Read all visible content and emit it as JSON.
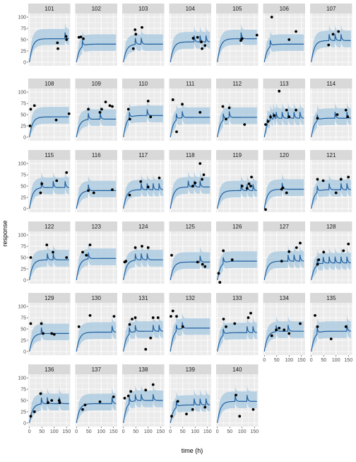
{
  "chart_data": {
    "type": "line",
    "subtype": "faceted pharmacokinetic fit: median line + shaded prediction band + observed points",
    "xlabel": "time (h)",
    "ylabel": "response",
    "xlim": [
      -5,
      165
    ],
    "ylim": [
      -8,
      108
    ],
    "x_ticks": [
      0,
      50,
      100,
      150
    ],
    "y_ticks": [
      0,
      25,
      50,
      75,
      100
    ],
    "x_tick_labels": [
      "0",
      "50",
      "100",
      "150"
    ],
    "y_tick_labels": [
      "0",
      "25",
      "50",
      "75",
      "100"
    ],
    "grid": true,
    "colors": {
      "panel_bg": "#ebebeb",
      "strip_bg": "#d9d9d9",
      "grid": "#ffffff",
      "band": "#a6c8e0",
      "line": "#1f5f9f",
      "points": "#000000"
    },
    "layout": {
      "columns": 7,
      "rows": 6
    },
    "panels": [
      {
        "id": "101",
        "dose_times": [
          0,
          144
        ],
        "pred_base": 52,
        "band_lo": 14,
        "band_hi": 22,
        "points": [
          [
            113,
            43
          ],
          [
            115,
            30
          ],
          [
            148,
            57
          ],
          [
            150,
            50
          ]
        ]
      },
      {
        "id": "102",
        "dose_times": [
          0,
          24
        ],
        "pred_base": 40,
        "band_lo": 15,
        "band_hi": 22,
        "points": [
          [
            10,
            55
          ],
          [
            18,
            56
          ],
          [
            28,
            52
          ]
        ]
      },
      {
        "id": "103",
        "dose_times": [
          0,
          48,
          72
        ],
        "pred_base": 40,
        "band_lo": 15,
        "band_hi": 22,
        "points": [
          [
            40,
            30
          ],
          [
            47,
            72
          ],
          [
            50,
            62
          ],
          [
            75,
            77
          ]
        ]
      },
      {
        "id": "104",
        "dose_times": [
          0,
          96,
          120,
          144
        ],
        "pred_base": 45,
        "band_lo": 15,
        "band_hi": 22,
        "points": [
          [
            92,
            53
          ],
          [
            110,
            55
          ],
          [
            125,
            45
          ],
          [
            128,
            30
          ],
          [
            140,
            37
          ]
        ]
      },
      {
        "id": "105",
        "dose_times": [
          0,
          96
        ],
        "pred_base": 52,
        "band_lo": 14,
        "band_hi": 20,
        "points": [
          [
            95,
            48
          ],
          [
            100,
            52
          ],
          [
            160,
            60
          ]
        ]
      },
      {
        "id": "106",
        "dose_times": [
          0,
          24
        ],
        "pred_base": 40,
        "band_lo": 15,
        "band_hi": 22,
        "points": [
          [
            30,
            100
          ],
          [
            100,
            50
          ],
          [
            128,
            68
          ]
        ]
      },
      {
        "id": "107",
        "dose_times": [
          0,
          72,
          96,
          120
        ],
        "pred_base": 48,
        "band_lo": 15,
        "band_hi": 22,
        "points": [
          [
            70,
            38
          ],
          [
            88,
            62
          ],
          [
            110,
            68
          ]
        ]
      },
      {
        "id": "108",
        "dose_times": [
          0
        ],
        "pred_base": 45,
        "band_lo": 15,
        "band_hi": 22,
        "points": [
          [
            2,
            25
          ],
          [
            5,
            62
          ],
          [
            20,
            70
          ],
          [
            108,
            38
          ],
          [
            160,
            52
          ]
        ]
      },
      {
        "id": "109",
        "dose_times": [
          0,
          48,
          96
        ],
        "pred_base": 40,
        "band_lo": 15,
        "band_hi": 22,
        "points": [
          [
            48,
            62
          ],
          [
            95,
            55
          ],
          [
            102,
            62
          ],
          [
            118,
            78
          ],
          [
            135,
            70
          ],
          [
            145,
            68
          ]
        ]
      },
      {
        "id": "110",
        "dose_times": [
          0,
          24,
          96
        ],
        "pred_base": 48,
        "band_lo": 15,
        "band_hi": 22,
        "points": [
          [
            20,
            62
          ],
          [
            26,
            40
          ],
          [
            100,
            80
          ],
          [
            110,
            45
          ]
        ]
      },
      {
        "id": "111",
        "dose_times": [
          0,
          24,
          48
        ],
        "pred_base": 44,
        "band_lo": 15,
        "band_hi": 22,
        "points": [
          [
            10,
            83
          ],
          [
            25,
            12
          ],
          [
            48,
            73
          ],
          [
            120,
            55
          ]
        ]
      },
      {
        "id": "112",
        "dose_times": [
          0,
          24,
          48
        ],
        "pred_base": 44,
        "band_lo": 15,
        "band_hi": 22,
        "points": [
          [
            22,
            68
          ],
          [
            35,
            40
          ],
          [
            48,
            65
          ],
          [
            110,
            28
          ]
        ]
      },
      {
        "id": "113",
        "dose_times": [
          0,
          12,
          24,
          36,
          48,
          72,
          96,
          120,
          144
        ],
        "pred_base": 42,
        "band_lo": 15,
        "band_hi": 22,
        "points": [
          [
            5,
            28
          ],
          [
            15,
            35
          ],
          [
            25,
            45
          ],
          [
            40,
            48
          ],
          [
            60,
            102
          ],
          [
            90,
            60
          ],
          [
            100,
            45
          ],
          [
            128,
            60
          ]
        ]
      },
      {
        "id": "114",
        "dose_times": [
          0,
          24,
          96,
          144
        ],
        "pred_base": 42,
        "band_lo": 15,
        "band_hi": 22,
        "points": [
          [
            25,
            42
          ],
          [
            105,
            50
          ],
          [
            140,
            60
          ],
          [
            147,
            45
          ]
        ]
      },
      {
        "id": "115",
        "dose_times": [
          0,
          48,
          96,
          144
        ],
        "pred_base": 47,
        "band_lo": 15,
        "band_hi": 22,
        "points": [
          [
            45,
            35
          ],
          [
            50,
            55
          ],
          [
            110,
            62
          ],
          [
            150,
            80
          ]
        ]
      },
      {
        "id": "116",
        "dose_times": [
          0,
          48
        ],
        "pred_base": 40,
        "band_lo": 15,
        "band_hi": 22,
        "points": [
          [
            48,
            40
          ],
          [
            70,
            35
          ],
          [
            145,
            42
          ]
        ]
      },
      {
        "id": "117",
        "dose_times": [
          0,
          72,
          96,
          120,
          144
        ],
        "pred_base": 42,
        "band_lo": 15,
        "band_hi": 22,
        "points": [
          [
            25,
            30
          ],
          [
            70,
            60
          ],
          [
            100,
            48
          ],
          [
            145,
            68
          ]
        ]
      },
      {
        "id": "118",
        "dose_times": [
          0,
          72,
          96,
          120
        ],
        "pred_base": 48,
        "band_lo": 15,
        "band_hi": 22,
        "points": [
          [
            90,
            50
          ],
          [
            100,
            57
          ],
          [
            120,
            100
          ],
          [
            128,
            65
          ],
          [
            135,
            75
          ]
        ]
      },
      {
        "id": "119",
        "dose_times": [
          0,
          96,
          120,
          144
        ],
        "pred_base": 40,
        "band_lo": 15,
        "band_hi": 22,
        "points": [
          [
            100,
            50
          ],
          [
            120,
            45
          ],
          [
            128,
            55
          ],
          [
            135,
            50
          ],
          [
            138,
            70
          ]
        ]
      },
      {
        "id": "120",
        "dose_times": [
          0,
          72
        ],
        "pred_base": 43,
        "band_lo": 15,
        "band_hi": 22,
        "points": [
          [
            5,
            -2
          ],
          [
            70,
            43
          ],
          [
            75,
            46
          ],
          [
            90,
            35
          ]
        ]
      },
      {
        "id": "121",
        "dose_times": [
          0,
          24,
          72,
          120,
          144
        ],
        "pred_base": 42,
        "band_lo": 15,
        "band_hi": 22,
        "points": [
          [
            25,
            65
          ],
          [
            48,
            62
          ],
          [
            100,
            35
          ],
          [
            120,
            65
          ],
          [
            150,
            70
          ]
        ]
      },
      {
        "id": "122",
        "dose_times": [
          0,
          72,
          96
        ],
        "pred_base": 45,
        "band_lo": 15,
        "band_hi": 22,
        "points": [
          [
            5,
            50
          ],
          [
            70,
            78
          ],
          [
            95,
            62
          ],
          [
            150,
            50
          ]
        ]
      },
      {
        "id": "123",
        "dose_times": [
          0,
          48
        ],
        "pred_base": 48,
        "band_lo": 15,
        "band_hi": 22,
        "points": [
          [
            25,
            62
          ],
          [
            40,
            55
          ],
          [
            55,
            78
          ]
        ]
      },
      {
        "id": "124",
        "dose_times": [
          0,
          48,
          72,
          96
        ],
        "pred_base": 45,
        "band_lo": 15,
        "band_hi": 22,
        "points": [
          [
            5,
            40
          ],
          [
            10,
            42
          ],
          [
            48,
            72
          ],
          [
            75,
            75
          ],
          [
            100,
            72
          ]
        ]
      },
      {
        "id": "125",
        "dose_times": [
          0,
          120
        ],
        "pred_base": 40,
        "band_lo": 15,
        "band_hi": 22,
        "points": [
          [
            5,
            55
          ],
          [
            110,
            40
          ],
          [
            130,
            35
          ],
          [
            140,
            30
          ]
        ]
      },
      {
        "id": "126",
        "dose_times": [
          0,
          24
        ],
        "pred_base": 42,
        "band_lo": 15,
        "band_hi": 22,
        "points": [
          [
            5,
            15
          ],
          [
            10,
            -5
          ],
          [
            24,
            65
          ],
          [
            60,
            45
          ]
        ]
      },
      {
        "id": "127",
        "dose_times": [
          0,
          96,
          120,
          144
        ],
        "pred_base": 42,
        "band_lo": 15,
        "band_hi": 22,
        "points": [
          [
            70,
            42
          ],
          [
            100,
            63
          ],
          [
            130,
            72
          ],
          [
            145,
            82
          ]
        ]
      },
      {
        "id": "128",
        "dose_times": [
          0,
          24,
          48,
          72,
          96,
          120,
          144
        ],
        "pred_base": 38,
        "band_lo": 15,
        "band_hi": 22,
        "points": [
          [
            25,
            35
          ],
          [
            30,
            45
          ],
          [
            50,
            62
          ],
          [
            130,
            65
          ],
          [
            150,
            80
          ]
        ]
      },
      {
        "id": "129",
        "dose_times": [
          0,
          48
        ],
        "pred_base": 40,
        "band_lo": 15,
        "band_hi": 22,
        "points": [
          [
            5,
            62
          ],
          [
            48,
            62
          ],
          [
            55,
            40
          ],
          [
            90,
            40
          ],
          [
            100,
            38
          ]
        ]
      },
      {
        "id": "130",
        "dose_times": [
          0,
          144
        ],
        "pred_base": 43,
        "band_lo": 15,
        "band_hi": 22,
        "points": [
          [
            10,
            55
          ],
          [
            55,
            80
          ],
          [
            152,
            78
          ]
        ]
      },
      {
        "id": "131",
        "dose_times": [
          0,
          24,
          48,
          120,
          144
        ],
        "pred_base": 45,
        "band_lo": 15,
        "band_hi": 22,
        "points": [
          [
            25,
            60
          ],
          [
            35,
            72
          ],
          [
            48,
            75
          ],
          [
            90,
            5
          ],
          [
            110,
            30
          ],
          [
            120,
            75
          ],
          [
            140,
            75
          ]
        ]
      },
      {
        "id": "132",
        "dose_times": [
          0,
          24,
          48
        ],
        "pred_base": 52,
        "band_lo": 15,
        "band_hi": 22,
        "points": [
          [
            2,
            78
          ],
          [
            10,
            90
          ],
          [
            25,
            78
          ],
          [
            50,
            55
          ]
        ]
      },
      {
        "id": "133",
        "dose_times": [
          0,
          24,
          120,
          144
        ],
        "pred_base": 42,
        "band_lo": 15,
        "band_hi": 22,
        "points": [
          [
            25,
            72
          ],
          [
            35,
            55
          ],
          [
            70,
            62
          ],
          [
            125,
            75
          ],
          [
            135,
            85
          ]
        ]
      },
      {
        "id": "134",
        "dose_times": [
          0,
          48,
          96
        ],
        "pred_base": 45,
        "band_lo": 15,
        "band_hi": 22,
        "points": [
          [
            30,
            35
          ],
          [
            48,
            48
          ],
          [
            60,
            52
          ],
          [
            80,
            48
          ],
          [
            100,
            40
          ],
          [
            145,
            62
          ]
        ]
      },
      {
        "id": "135",
        "dose_times": [
          0,
          24,
          144
        ],
        "pred_base": 45,
        "band_lo": 15,
        "band_hi": 22,
        "points": [
          [
            15,
            80
          ],
          [
            25,
            55
          ],
          [
            80,
            28
          ],
          [
            140,
            55
          ]
        ]
      },
      {
        "id": "136",
        "dose_times": [
          0,
          48,
          72,
          120
        ],
        "pred_base": 43,
        "band_lo": 15,
        "band_hi": 22,
        "points": [
          [
            5,
            15
          ],
          [
            20,
            25
          ],
          [
            45,
            65
          ],
          [
            75,
            45
          ],
          [
            90,
            50
          ],
          [
            120,
            50
          ],
          [
            122,
            45
          ]
        ]
      },
      {
        "id": "137",
        "dose_times": [
          0,
          144
        ],
        "pred_base": 43,
        "band_lo": 15,
        "band_hi": 22,
        "points": [
          [
            25,
            30
          ],
          [
            35,
            40
          ],
          [
            95,
            47
          ],
          [
            150,
            58
          ]
        ]
      },
      {
        "id": "138",
        "dose_times": [
          0,
          24,
          48,
          72,
          120
        ],
        "pred_base": 50,
        "band_lo": 15,
        "band_hi": 22,
        "points": [
          [
            5,
            55
          ],
          [
            20,
            60
          ],
          [
            30,
            70
          ],
          [
            90,
            73
          ],
          [
            120,
            85
          ]
        ]
      },
      {
        "id": "139",
        "dose_times": [
          0,
          24,
          96,
          120,
          144
        ],
        "pred_base": 40,
        "band_lo": 15,
        "band_hi": 22,
        "points": [
          [
            5,
            15
          ],
          [
            30,
            48
          ],
          [
            65,
            20
          ],
          [
            90,
            30
          ],
          [
            140,
            35
          ]
        ]
      },
      {
        "id": "140",
        "dose_times": [
          0,
          72,
          120
        ],
        "pred_base": 48,
        "band_lo": 15,
        "band_hi": 22,
        "points": [
          [
            75,
            62
          ],
          [
            90,
            15
          ],
          [
            145,
            30
          ]
        ]
      }
    ]
  }
}
